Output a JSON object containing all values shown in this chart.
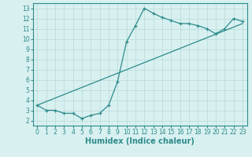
{
  "line1_x": [
    0,
    1,
    2,
    3,
    4,
    5,
    6,
    7,
    8,
    9,
    10,
    11,
    12,
    13,
    14,
    15,
    16,
    17,
    18,
    19,
    20,
    21,
    22,
    23
  ],
  "line1_y": [
    3.5,
    3.0,
    3.0,
    2.7,
    2.7,
    2.2,
    2.5,
    2.7,
    3.5,
    5.8,
    9.7,
    11.3,
    13.0,
    12.5,
    12.1,
    11.8,
    11.5,
    11.5,
    11.3,
    11.0,
    10.5,
    11.0,
    12.0,
    11.7
  ],
  "line2_x": [
    0,
    23
  ],
  "line2_y": [
    3.5,
    11.5
  ],
  "color": "#2e8b8b",
  "bg_color": "#d8f0f0",
  "grid_color": "#b8dada",
  "xlabel": "Humidex (Indice chaleur)",
  "xlim": [
    -0.5,
    23.5
  ],
  "ylim": [
    1.5,
    13.5
  ],
  "yticks": [
    2,
    3,
    4,
    5,
    6,
    7,
    8,
    9,
    10,
    11,
    12,
    13
  ],
  "xticks": [
    0,
    1,
    2,
    3,
    4,
    5,
    6,
    7,
    8,
    9,
    10,
    11,
    12,
    13,
    14,
    15,
    16,
    17,
    18,
    19,
    20,
    21,
    22,
    23
  ],
  "tick_fontsize": 5.5,
  "xlabel_fontsize": 7,
  "marker": "+",
  "marker_size": 3,
  "line_width": 0.9
}
